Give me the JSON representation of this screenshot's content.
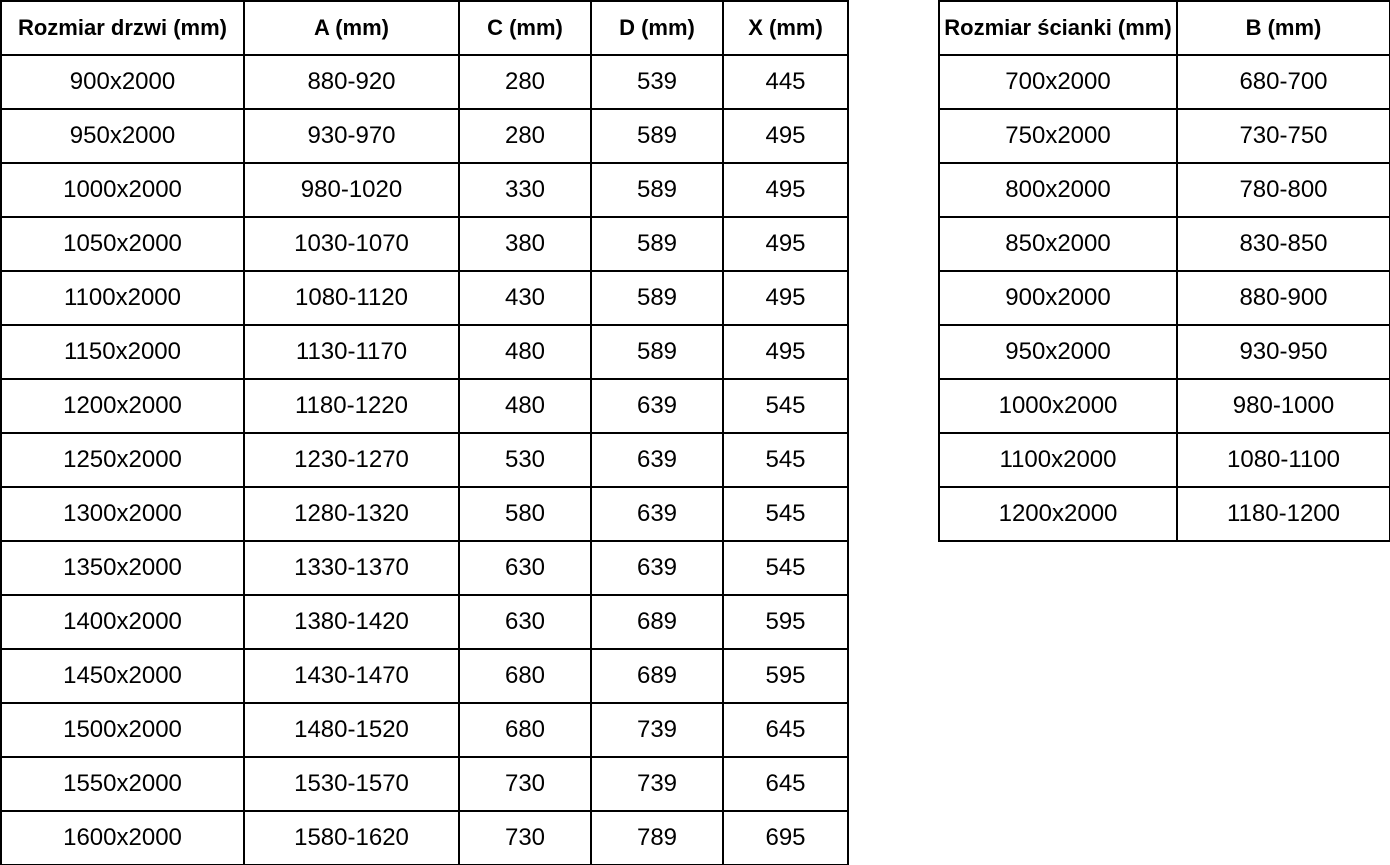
{
  "colors": {
    "page_background": "#ffffff",
    "table_background": "#ffffff",
    "border": "#000000",
    "text": "#000000"
  },
  "chart_data": [
    {
      "type": "table",
      "name": "door-dimensions",
      "title": "Rozmiar drzwi (mm)",
      "columns": [
        "Rozmiar drzwi (mm)",
        "A (mm)",
        "C (mm)",
        "D (mm)",
        "X (mm)"
      ],
      "rows": [
        [
          "900x2000",
          "880-920",
          "280",
          "539",
          "445"
        ],
        [
          "950x2000",
          "930-970",
          "280",
          "589",
          "495"
        ],
        [
          "1000x2000",
          "980-1020",
          "330",
          "589",
          "495"
        ],
        [
          "1050x2000",
          "1030-1070",
          "380",
          "589",
          "495"
        ],
        [
          "1100x2000",
          "1080-1120",
          "430",
          "589",
          "495"
        ],
        [
          "1150x2000",
          "1130-1170",
          "480",
          "589",
          "495"
        ],
        [
          "1200x2000",
          "1180-1220",
          "480",
          "639",
          "545"
        ],
        [
          "1250x2000",
          "1230-1270",
          "530",
          "639",
          "545"
        ],
        [
          "1300x2000",
          "1280-1320",
          "580",
          "639",
          "545"
        ],
        [
          "1350x2000",
          "1330-1370",
          "630",
          "639",
          "545"
        ],
        [
          "1400x2000",
          "1380-1420",
          "630",
          "689",
          "595"
        ],
        [
          "1450x2000",
          "1430-1470",
          "680",
          "689",
          "595"
        ],
        [
          "1500x2000",
          "1480-1520",
          "680",
          "739",
          "645"
        ],
        [
          "1550x2000",
          "1530-1570",
          "730",
          "739",
          "645"
        ],
        [
          "1600x2000",
          "1580-1620",
          "730",
          "789",
          "695"
        ]
      ]
    },
    {
      "type": "table",
      "name": "wall-panel-dimensions",
      "title": "Rozmiar ścianki (mm)",
      "columns": [
        "Rozmiar ścianki (mm)",
        "B (mm)"
      ],
      "rows": [
        [
          "700x2000",
          "680-700"
        ],
        [
          "750x2000",
          "730-750"
        ],
        [
          "800x2000",
          "780-800"
        ],
        [
          "850x2000",
          "830-850"
        ],
        [
          "900x2000",
          "880-900"
        ],
        [
          "950x2000",
          "930-950"
        ],
        [
          "1000x2000",
          "980-1000"
        ],
        [
          "1100x2000",
          "1080-1100"
        ],
        [
          "1200x2000",
          "1180-1200"
        ]
      ]
    }
  ]
}
